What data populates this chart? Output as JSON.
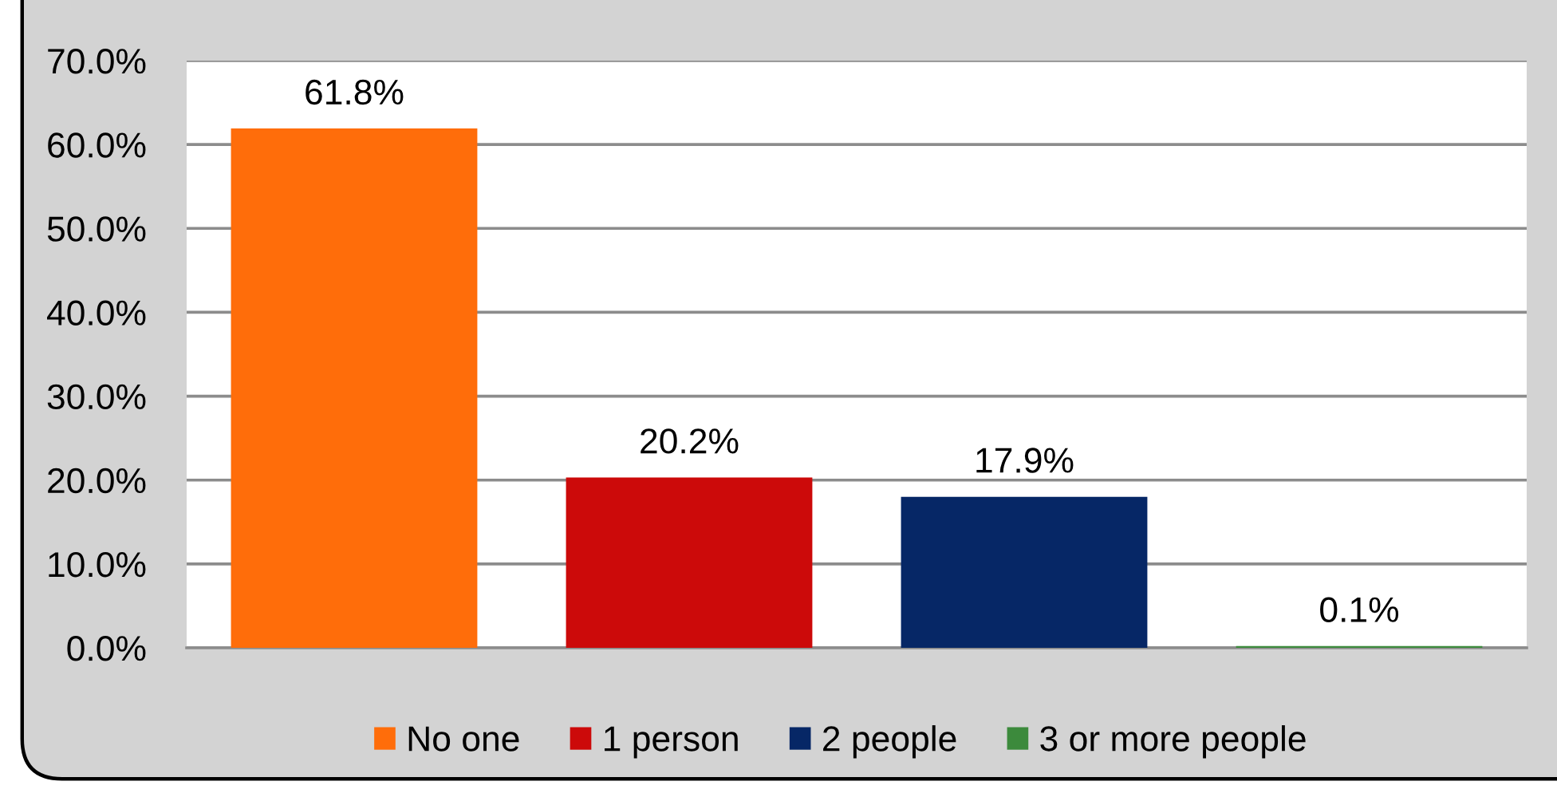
{
  "chart_data": {
    "type": "bar",
    "categories": [
      null,
      null,
      null,
      null
    ],
    "series": [
      {
        "name": "No one",
        "color": "#ff6d0a",
        "values": [
          61.8,
          null,
          null,
          null
        ],
        "value_labels": [
          "61.8%",
          null,
          null,
          null
        ]
      },
      {
        "name": "1 person",
        "color": "#cc0a0a",
        "values": [
          null,
          20.2,
          null,
          null
        ],
        "value_labels": [
          null,
          "20.2%",
          null,
          null
        ]
      },
      {
        "name": "2 people",
        "color": "#062766",
        "values": [
          null,
          null,
          17.9,
          null
        ],
        "value_labels": [
          null,
          null,
          "17.9%",
          null
        ]
      },
      {
        "name": "3 or more people",
        "color": "#3c8a3c",
        "values": [
          null,
          null,
          null,
          0.1
        ],
        "value_labels": [
          null,
          null,
          null,
          "0.1%"
        ]
      }
    ],
    "ylim": [
      0,
      70
    ],
    "yticks": [
      {
        "value": 0,
        "label": "0.0%"
      },
      {
        "value": 10,
        "label": "10.0%"
      },
      {
        "value": 20,
        "label": "20.0%"
      },
      {
        "value": 30,
        "label": "30.0%"
      },
      {
        "value": 40,
        "label": "40.0%"
      },
      {
        "value": 50,
        "label": "50.0%"
      },
      {
        "value": 60,
        "label": "60.0%"
      },
      {
        "value": 70,
        "label": "70.0%"
      }
    ],
    "grid": "y",
    "legend": "bottom",
    "tick_labels": "y"
  }
}
